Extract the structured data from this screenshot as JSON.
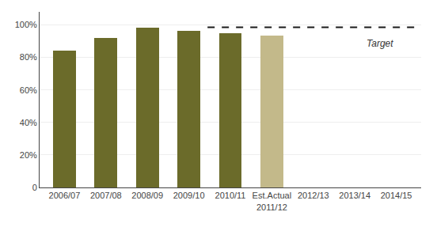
{
  "chart_data": {
    "type": "bar",
    "categories": [
      "2006/07",
      "2007/08",
      "2008/09",
      "2009/10",
      "2010/11",
      "Est.Actual\n2011/12",
      "2012/13",
      "2013/14",
      "2014/15"
    ],
    "values": [
      0.84,
      0.92,
      0.985,
      0.964,
      0.95,
      0.935,
      null,
      null,
      null
    ],
    "colors": [
      "#6b6b2a",
      "#6b6b2a",
      "#6b6b2a",
      "#6b6b2a",
      "#6b6b2a",
      "#c3b98a",
      null,
      null,
      null
    ],
    "ylim": [
      0,
      1.08
    ],
    "yticks": [
      0,
      {
        "value": 0.2,
        "label": "20%"
      },
      {
        "value": 0.4,
        "label": "40%"
      },
      {
        "value": 0.6,
        "label": "60%"
      },
      {
        "value": 0.8,
        "label": "80%"
      },
      {
        "value": 1.0,
        "label": "100%"
      }
    ],
    "grid": true,
    "target": {
      "value": 0.985,
      "label": "Target",
      "color": "#1a1a1a"
    }
  }
}
